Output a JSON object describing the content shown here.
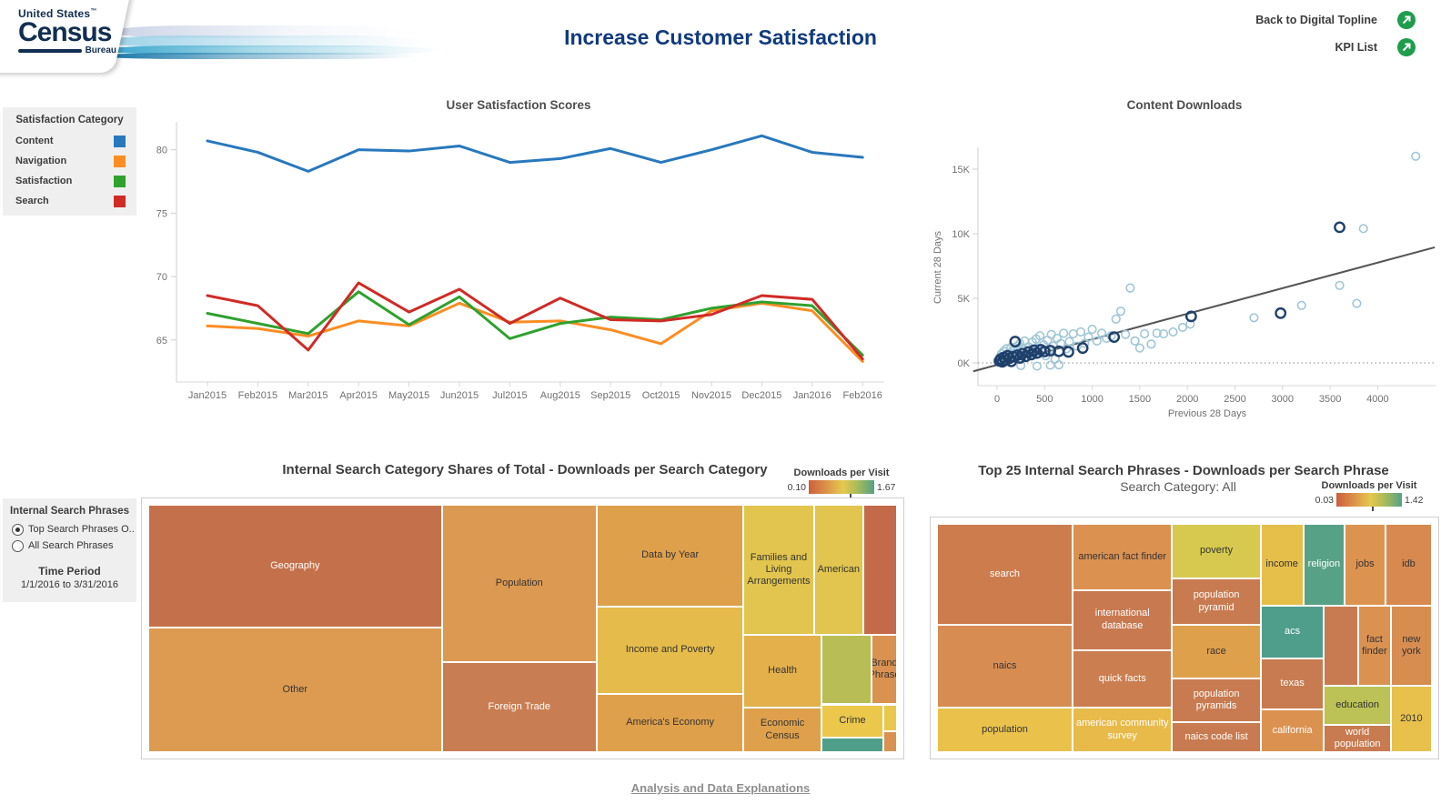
{
  "header": {
    "logo": {
      "top": "United States",
      "tm": "™",
      "main": "Census",
      "sub": "Bureau"
    },
    "title": "Increase Customer Satisfaction",
    "links": [
      {
        "label": "Back to Digital Topline"
      },
      {
        "label": "KPI List"
      }
    ],
    "link_icon_color": "#1f9d4d"
  },
  "sidebar": {
    "satisfaction_legend": {
      "title": "Satisfaction Category",
      "items": [
        {
          "label": "Content",
          "color": "#2878bd"
        },
        {
          "label": "Navigation",
          "color": "#fb8d23"
        },
        {
          "label": "Satisfaction",
          "color": "#2fa12e"
        },
        {
          "label": "Search",
          "color": "#cf2b27"
        }
      ]
    },
    "search_phrase_filter": {
      "title": "Internal Search Phrases",
      "options": [
        {
          "label": "Top Search Phrases O..",
          "selected": true
        },
        {
          "label": "All Search Phrases",
          "selected": false
        }
      ]
    },
    "time_period": {
      "title": "Time Period",
      "value": "1/1/2016 to 3/31/2016"
    }
  },
  "footer": {
    "link_label": "Analysis and Data Explanations"
  },
  "chart_data": [
    {
      "type": "line",
      "title": "User Satisfaction Scores",
      "categories": [
        "Jan2015",
        "Feb2015",
        "Mar2015",
        "Apr2015",
        "May2015",
        "Jun2015",
        "Jul2015",
        "Aug2015",
        "Sep2015",
        "Oct2015",
        "Nov2015",
        "Dec2015",
        "Jan2016",
        "Feb2016"
      ],
      "yticks": [
        65,
        70,
        75,
        80
      ],
      "ylim": [
        62.4,
        82.2
      ],
      "grid": false,
      "series": [
        {
          "name": "Content",
          "color": "#2878bd",
          "values": [
            80.7,
            79.8,
            78.3,
            80.0,
            79.9,
            80.3,
            79.0,
            79.3,
            80.1,
            79.0,
            80.0,
            81.1,
            79.8,
            79.4
          ]
        },
        {
          "name": "Navigation",
          "color": "#fb8d23",
          "values": [
            66.1,
            65.9,
            65.3,
            66.5,
            66.1,
            67.9,
            66.4,
            66.5,
            65.8,
            64.7,
            67.3,
            67.9,
            67.3,
            63.3
          ]
        },
        {
          "name": "Satisfaction",
          "color": "#2fa12e",
          "values": [
            67.1,
            66.3,
            65.5,
            68.8,
            66.2,
            68.4,
            65.1,
            66.3,
            66.8,
            66.6,
            67.5,
            68.0,
            67.7,
            63.8
          ]
        },
        {
          "name": "Search",
          "color": "#cf2b27",
          "values": [
            68.5,
            67.7,
            64.2,
            69.5,
            67.2,
            69.0,
            66.3,
            68.3,
            66.6,
            66.5,
            67.0,
            68.5,
            68.2,
            63.5
          ]
        }
      ]
    },
    {
      "type": "scatter",
      "title": "Content Downloads",
      "xlabel": "Previous 28 Days",
      "ylabel": "Current 28 Days",
      "xticks": [
        0,
        500,
        1000,
        1500,
        2000,
        2500,
        3000,
        3500,
        4000
      ],
      "yticks": [
        {
          "v": 0,
          "label": "0K"
        },
        {
          "v": 5000,
          "label": "5K"
        },
        {
          "v": 10000,
          "label": "10K"
        },
        {
          "v": 15000,
          "label": "15K"
        }
      ],
      "xlim": [
        -300,
        4650
      ],
      "ylim": [
        -2000,
        19000
      ],
      "zero_line": true,
      "trend": {
        "x1": -250,
        "y1": -650,
        "x2": 4600,
        "y2": 8950,
        "color": "#555555"
      },
      "series": [
        {
          "name": "prior-period",
          "color": "#9fc6d6",
          "points": [
            [
              30,
              450
            ],
            [
              45,
              700
            ],
            [
              60,
              250
            ],
            [
              70,
              900
            ],
            [
              85,
              550
            ],
            [
              100,
              1100
            ],
            [
              115,
              300
            ],
            [
              130,
              800
            ],
            [
              145,
              1200
            ],
            [
              160,
              450
            ],
            [
              175,
              950
            ],
            [
              190,
              600
            ],
            [
              210,
              1300
            ],
            [
              225,
              750
            ],
            [
              240,
              1500
            ],
            [
              255,
              350
            ],
            [
              270,
              1100
            ],
            [
              290,
              1700
            ],
            [
              310,
              500
            ],
            [
              330,
              1250
            ],
            [
              350,
              900
            ],
            [
              370,
              1600
            ],
            [
              390,
              700
            ],
            [
              410,
              1850
            ],
            [
              430,
              1150
            ],
            [
              450,
              2100
            ],
            [
              470,
              800
            ],
            [
              490,
              1400
            ],
            [
              510,
              550
            ],
            [
              530,
              1750
            ],
            [
              550,
              1000
            ],
            [
              570,
              2200
            ],
            [
              590,
              1300
            ],
            [
              610,
              300
            ],
            [
              630,
              1900
            ],
            [
              650,
              -150
            ],
            [
              670,
              1500
            ],
            [
              700,
              2300
            ],
            [
              730,
              1100
            ],
            [
              760,
              1650
            ],
            [
              800,
              2250
            ],
            [
              840,
              1300
            ],
            [
              880,
              2400
            ],
            [
              920,
              1500
            ],
            [
              960,
              2000
            ],
            [
              1000,
              2600
            ],
            [
              1050,
              1700
            ],
            [
              1100,
              2300
            ],
            [
              1150,
              1900
            ],
            [
              1200,
              2100
            ],
            [
              1250,
              3400
            ],
            [
              1300,
              4000
            ],
            [
              1350,
              2200
            ],
            [
              1400,
              5800
            ],
            [
              1450,
              1700
            ],
            [
              1500,
              1150
            ],
            [
              1550,
              2250
            ],
            [
              1620,
              1450
            ],
            [
              1680,
              2300
            ],
            [
              1750,
              2250
            ],
            [
              1850,
              2400
            ],
            [
              1950,
              2750
            ],
            [
              2030,
              3000
            ],
            [
              2700,
              3500
            ],
            [
              3200,
              4450
            ],
            [
              3600,
              6000
            ],
            [
              3780,
              4600
            ],
            [
              3850,
              10400
            ],
            [
              4400,
              16000
            ],
            [
              250,
              -200
            ],
            [
              420,
              -250
            ],
            [
              560,
              -180
            ]
          ]
        },
        {
          "name": "current-period",
          "color": "#20406c",
          "points": [
            [
              25,
              150
            ],
            [
              40,
              300
            ],
            [
              55,
              80
            ],
            [
              70,
              420
            ],
            [
              90,
              200
            ],
            [
              110,
              550
            ],
            [
              130,
              350
            ],
            [
              150,
              120
            ],
            [
              170,
              480
            ],
            [
              190,
              1650
            ],
            [
              215,
              600
            ],
            [
              240,
              380
            ],
            [
              270,
              720
            ],
            [
              300,
              500
            ],
            [
              330,
              850
            ],
            [
              360,
              640
            ],
            [
              390,
              980
            ],
            [
              420,
              760
            ],
            [
              460,
              1020
            ],
            [
              500,
              880
            ],
            [
              560,
              950
            ],
            [
              650,
              900
            ],
            [
              750,
              850
            ],
            [
              900,
              1150
            ],
            [
              1230,
              2000
            ],
            [
              2040,
              3600
            ],
            [
              2980,
              3850
            ],
            [
              3600,
              10500
            ]
          ]
        }
      ]
    },
    {
      "type": "treemap",
      "title": "Internal Search Category Shares of Total - Downloads per Search Category",
      "legend": {
        "title": "Downloads per Visit",
        "min": "0.10",
        "max": "1.67",
        "marker_pct": 62
      },
      "tiles": [
        {
          "label": "Geography",
          "x": 0,
          "y": 0,
          "w": 39.2,
          "h": 49.6,
          "color": "#c4714b",
          "text": "light"
        },
        {
          "label": "Other",
          "x": 0,
          "y": 49.6,
          "w": 39.2,
          "h": 50.4,
          "color": "#dd9b51",
          "text": "dark"
        },
        {
          "label": "Population",
          "x": 39.2,
          "y": 0,
          "w": 20.7,
          "h": 63.6,
          "color": "#dc9951",
          "text": "dark"
        },
        {
          "label": "Foreign Trade",
          "x": 39.2,
          "y": 63.6,
          "w": 20.7,
          "h": 36.4,
          "color": "#c97d52",
          "text": "light"
        },
        {
          "label": "Data by Year",
          "x": 59.9,
          "y": 0,
          "w": 19.6,
          "h": 41.2,
          "color": "#dfa04b",
          "text": "dark"
        },
        {
          "label": "Income and Poverty",
          "x": 59.9,
          "y": 41.2,
          "w": 19.6,
          "h": 35.3,
          "color": "#e5bb4b",
          "text": "dark"
        },
        {
          "label": "America's Economy",
          "x": 59.9,
          "y": 76.5,
          "w": 19.6,
          "h": 23.5,
          "color": "#dfa04b",
          "text": "dark"
        },
        {
          "label": "Families and Living Arrangements",
          "x": 79.5,
          "y": 0,
          "w": 9.4,
          "h": 52.6,
          "color": "#e2c54e",
          "text": "dark"
        },
        {
          "label": "American",
          "x": 88.9,
          "y": 0,
          "w": 6.6,
          "h": 52.6,
          "color": "#e2c54e",
          "text": "dark"
        },
        {
          "label": "",
          "x": 95.5,
          "y": 0,
          "w": 4.5,
          "h": 52.6,
          "color": "#c26a49",
          "text": "light"
        },
        {
          "label": "Health",
          "x": 79.5,
          "y": 52.6,
          "w": 10.4,
          "h": 29.4,
          "color": "#e3b04c",
          "text": "dark"
        },
        {
          "label": "",
          "x": 89.9,
          "y": 52.6,
          "w": 6.7,
          "h": 28.1,
          "color": "#b8bd55",
          "text": "dark"
        },
        {
          "label": "Brand Phrase",
          "x": 96.6,
          "y": 52.6,
          "w": 3.4,
          "h": 28.1,
          "color": "#d9924f",
          "text": "dark"
        },
        {
          "label": "Economic Census",
          "x": 79.5,
          "y": 82.0,
          "w": 10.4,
          "h": 18.0,
          "color": "#dfa04b",
          "text": "dark"
        },
        {
          "label": "Crime",
          "x": 89.9,
          "y": 80.7,
          "w": 8.3,
          "h": 13.3,
          "color": "#ebc74c",
          "text": "dark"
        },
        {
          "label": "",
          "x": 89.9,
          "y": 94.0,
          "w": 8.3,
          "h": 6.0,
          "color": "#4f9e89",
          "text": "light"
        },
        {
          "label": "",
          "x": 98.2,
          "y": 80.7,
          "w": 1.8,
          "h": 11.0,
          "color": "#e9c84d",
          "text": "dark"
        },
        {
          "label": "",
          "x": 98.2,
          "y": 91.7,
          "w": 1.8,
          "h": 8.3,
          "color": "#d9924f",
          "text": "dark"
        }
      ]
    },
    {
      "type": "treemap",
      "title": "Top 25 Internal Search Phrases - Downloads per Search Phrase",
      "subtitle": "Search Category: All",
      "legend": {
        "title": "Downloads per Visit",
        "min": "0.03",
        "max": "1.42",
        "marker_pct": 54
      },
      "tiles": [
        {
          "label": "search",
          "x": 0,
          "y": 0,
          "w": 27.4,
          "h": 44.4,
          "color": "#cd7c4e",
          "text": "light"
        },
        {
          "label": "naics",
          "x": 0,
          "y": 44.4,
          "w": 27.4,
          "h": 36.2,
          "color": "#d78d52",
          "text": "dark"
        },
        {
          "label": "population",
          "x": 0,
          "y": 80.6,
          "w": 27.4,
          "h": 19.4,
          "color": "#eac24b",
          "text": "dark"
        },
        {
          "label": "american fact finder",
          "x": 27.4,
          "y": 0,
          "w": 20.1,
          "h": 29.0,
          "color": "#db9150",
          "text": "dark"
        },
        {
          "label": "international database",
          "x": 27.4,
          "y": 29.0,
          "w": 20.1,
          "h": 26.2,
          "color": "#c87950",
          "text": "light"
        },
        {
          "label": "quick facts",
          "x": 27.4,
          "y": 55.2,
          "w": 20.1,
          "h": 25.4,
          "color": "#cb7e4f",
          "text": "light"
        },
        {
          "label": "american community survey",
          "x": 27.4,
          "y": 80.6,
          "w": 20.1,
          "h": 19.4,
          "color": "#e8ba4a",
          "text": "light"
        },
        {
          "label": "poverty",
          "x": 47.5,
          "y": 0,
          "w": 17.9,
          "h": 23.8,
          "color": "#d7c94f",
          "text": "dark"
        },
        {
          "label": "population pyramid",
          "x": 47.5,
          "y": 23.8,
          "w": 17.9,
          "h": 20.6,
          "color": "#c87b50",
          "text": "light"
        },
        {
          "label": "race",
          "x": 47.5,
          "y": 44.4,
          "w": 17.9,
          "h": 23.4,
          "color": "#dfa04c",
          "text": "dark"
        },
        {
          "label": "population pyramids",
          "x": 47.5,
          "y": 67.8,
          "w": 17.9,
          "h": 19.0,
          "color": "#c87b50",
          "text": "light"
        },
        {
          "label": "naics code list",
          "x": 47.5,
          "y": 86.8,
          "w": 17.9,
          "h": 13.2,
          "color": "#c87b50",
          "text": "light"
        },
        {
          "label": "income",
          "x": 65.4,
          "y": 0,
          "w": 8.6,
          "h": 35.9,
          "color": "#e6bf4b",
          "text": "dark"
        },
        {
          "label": "religion",
          "x": 74.0,
          "y": 0,
          "w": 8.4,
          "h": 35.9,
          "color": "#57a286",
          "text": "light"
        },
        {
          "label": "jobs",
          "x": 82.4,
          "y": 0,
          "w": 8.2,
          "h": 35.9,
          "color": "#dc9350",
          "text": "dark"
        },
        {
          "label": "idb",
          "x": 90.6,
          "y": 0,
          "w": 9.4,
          "h": 35.9,
          "color": "#d8894f",
          "text": "dark"
        },
        {
          "label": "acs",
          "x": 65.4,
          "y": 35.9,
          "w": 12.8,
          "h": 23.0,
          "color": "#4f9e8c",
          "text": "light"
        },
        {
          "label": "texas",
          "x": 65.4,
          "y": 58.9,
          "w": 12.8,
          "h": 22.2,
          "color": "#c87b50",
          "text": "light"
        },
        {
          "label": "california",
          "x": 65.4,
          "y": 81.1,
          "w": 12.8,
          "h": 18.9,
          "color": "#db9150",
          "text": "light"
        },
        {
          "label": "",
          "x": 78.2,
          "y": 35.9,
          "w": 6.9,
          "h": 35.1,
          "color": "#c87b50",
          "text": "light"
        },
        {
          "label": "fact finder",
          "x": 85.1,
          "y": 35.9,
          "w": 6.6,
          "h": 35.1,
          "color": "#db9150",
          "text": "dark"
        },
        {
          "label": "new york",
          "x": 91.7,
          "y": 35.9,
          "w": 8.3,
          "h": 35.1,
          "color": "#d88d50",
          "text": "dark"
        },
        {
          "label": "education",
          "x": 78.2,
          "y": 71.0,
          "w": 13.5,
          "h": 16.9,
          "color": "#bcc256",
          "text": "dark"
        },
        {
          "label": "world population",
          "x": 78.2,
          "y": 87.9,
          "w": 13.5,
          "h": 12.1,
          "color": "#c87b50",
          "text": "light"
        },
        {
          "label": "2010",
          "x": 91.7,
          "y": 71.0,
          "w": 8.3,
          "h": 29.0,
          "color": "#e7c14b",
          "text": "dark"
        }
      ]
    }
  ]
}
